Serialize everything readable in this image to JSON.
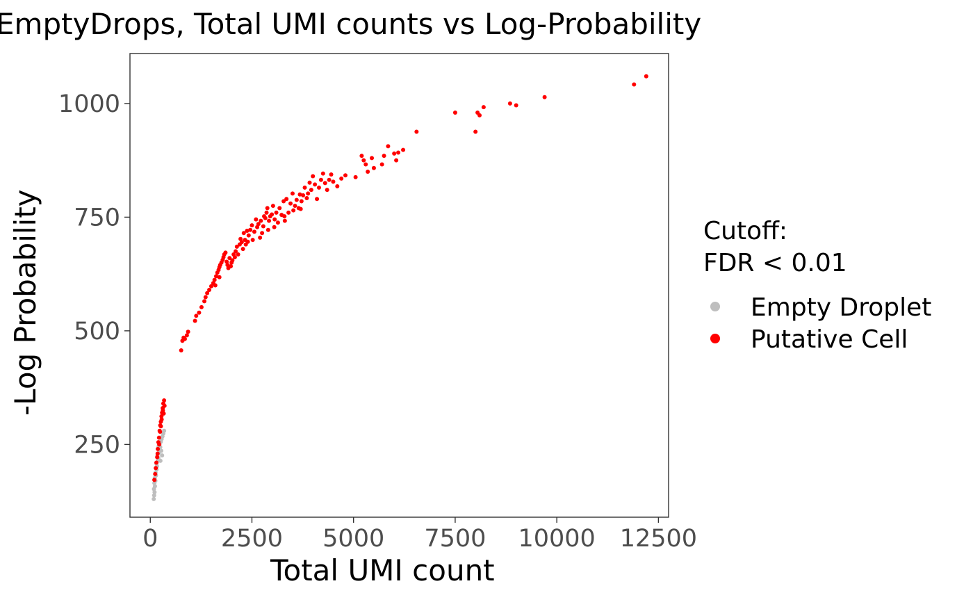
{
  "chart_data": {
    "type": "scatter",
    "title": "EmptyDrops, Total UMI counts vs Log-Probability",
    "xlabel": "Total UMI count",
    "ylabel": "-Log Probability",
    "xlim": [
      -500,
      12750
    ],
    "ylim": [
      90,
      1110
    ],
    "x_ticks": [
      0,
      2500,
      5000,
      7500,
      10000,
      12500
    ],
    "x_tick_labels": [
      "0",
      "2500",
      "5000",
      "7500",
      "10000",
      "12500"
    ],
    "y_ticks": [
      250,
      500,
      750,
      1000
    ],
    "y_tick_labels": [
      "250",
      "500",
      "750",
      "1000"
    ],
    "grid": false,
    "legend": {
      "title": "Cutoff:\nFDR < 0.01",
      "position": "right"
    },
    "series": [
      {
        "name": "Empty Droplet",
        "color": "#bebebe",
        "points": [
          [
            85,
            130
          ],
          [
            95,
            138
          ],
          [
            105,
            145
          ],
          [
            90,
            152
          ],
          [
            115,
            158
          ],
          [
            100,
            165
          ],
          [
            125,
            170
          ],
          [
            110,
            176
          ],
          [
            140,
            182
          ],
          [
            130,
            188
          ],
          [
            155,
            195
          ],
          [
            165,
            202
          ],
          [
            150,
            208
          ],
          [
            185,
            214
          ],
          [
            200,
            220
          ],
          [
            175,
            226
          ],
          [
            215,
            232
          ],
          [
            230,
            238
          ],
          [
            245,
            244
          ],
          [
            225,
            250
          ],
          [
            260,
            256
          ],
          [
            280,
            262
          ],
          [
            300,
            268
          ],
          [
            320,
            274
          ],
          [
            340,
            280
          ],
          [
            270,
            236
          ],
          [
            250,
            214
          ],
          [
            205,
            246
          ],
          [
            290,
            226
          ]
        ]
      },
      {
        "name": "Putative Cell",
        "color": "#ff0000",
        "points": [
          [
            100,
            172
          ],
          [
            120,
            185
          ],
          [
            135,
            198
          ],
          [
            150,
            210
          ],
          [
            170,
            222
          ],
          [
            185,
            240
          ],
          [
            200,
            255
          ],
          [
            215,
            265
          ],
          [
            230,
            280
          ],
          [
            245,
            292
          ],
          [
            260,
            300
          ],
          [
            275,
            312
          ],
          [
            290,
            320
          ],
          [
            305,
            330
          ],
          [
            320,
            340
          ],
          [
            340,
            347
          ],
          [
            350,
            335
          ],
          [
            310,
            325
          ],
          [
            280,
            305
          ],
          [
            260,
            290
          ],
          [
            180,
            230
          ],
          [
            240,
            278
          ],
          [
            220,
            250
          ],
          [
            330,
            318
          ],
          [
            760,
            457
          ],
          [
            790,
            478
          ],
          [
            820,
            485
          ],
          [
            850,
            482
          ],
          [
            900,
            490
          ],
          [
            930,
            498
          ],
          [
            1100,
            522
          ],
          [
            1130,
            533
          ],
          [
            1200,
            540
          ],
          [
            1260,
            552
          ],
          [
            1330,
            565
          ],
          [
            1360,
            574
          ],
          [
            1400,
            583
          ],
          [
            1450,
            590
          ],
          [
            1500,
            598
          ],
          [
            1550,
            605
          ],
          [
            1580,
            612
          ],
          [
            1620,
            620
          ],
          [
            1650,
            628
          ],
          [
            1680,
            634
          ],
          [
            1700,
            640
          ],
          [
            1720,
            645
          ],
          [
            1750,
            650
          ],
          [
            1780,
            656
          ],
          [
            1800,
            662
          ],
          [
            1820,
            668
          ],
          [
            1850,
            672
          ],
          [
            1880,
            652
          ],
          [
            1900,
            645
          ],
          [
            1920,
            638
          ],
          [
            1950,
            660
          ],
          [
            1980,
            642
          ],
          [
            2000,
            650
          ],
          [
            2020,
            655
          ],
          [
            2050,
            668
          ],
          [
            2080,
            662
          ],
          [
            2100,
            675
          ],
          [
            2130,
            685
          ],
          [
            2160,
            668
          ],
          [
            2200,
            690
          ],
          [
            2220,
            702
          ],
          [
            2250,
            695
          ],
          [
            2280,
            680
          ],
          [
            2300,
            715
          ],
          [
            2330,
            700
          ],
          [
            2350,
            690
          ],
          [
            2380,
            720
          ],
          [
            2420,
            710
          ],
          [
            2460,
            722
          ],
          [
            2500,
            732
          ],
          [
            2520,
            700
          ],
          [
            2560,
            718
          ],
          [
            2600,
            745
          ],
          [
            2630,
            728
          ],
          [
            2660,
            735
          ],
          [
            2700,
            705
          ],
          [
            2720,
            742
          ],
          [
            2750,
            715
          ],
          [
            2780,
            730
          ],
          [
            2800,
            752
          ],
          [
            2830,
            748
          ],
          [
            2860,
            760
          ],
          [
            2880,
            770
          ],
          [
            2920,
            742
          ],
          [
            2950,
            752
          ],
          [
            2990,
            756
          ],
          [
            3020,
            775
          ],
          [
            3060,
            745
          ],
          [
            3100,
            760
          ],
          [
            3140,
            738
          ],
          [
            3180,
            770
          ],
          [
            3230,
            755
          ],
          [
            3280,
            785
          ],
          [
            3310,
            742
          ],
          [
            3350,
            790
          ],
          [
            3400,
            760
          ],
          [
            3450,
            780
          ],
          [
            3500,
            802
          ],
          [
            3520,
            765
          ],
          [
            3560,
            775
          ],
          [
            3600,
            788
          ],
          [
            3650,
            770
          ],
          [
            3680,
            800
          ],
          [
            3720,
            785
          ],
          [
            3760,
            798
          ],
          [
            3800,
            815
          ],
          [
            3850,
            792
          ],
          [
            3880,
            802
          ],
          [
            3920,
            826
          ],
          [
            3960,
            810
          ],
          [
            4000,
            840
          ],
          [
            4050,
            822
          ],
          [
            4100,
            790
          ],
          [
            4150,
            815
          ],
          [
            4200,
            832
          ],
          [
            4250,
            846
          ],
          [
            4300,
            825
          ],
          [
            4350,
            810
          ],
          [
            4400,
            832
          ],
          [
            4450,
            844
          ],
          [
            4500,
            828
          ],
          [
            4600,
            818
          ],
          [
            4800,
            842
          ],
          [
            5050,
            838
          ],
          [
            5200,
            885
          ],
          [
            5250,
            875
          ],
          [
            5300,
            866
          ],
          [
            5350,
            850
          ],
          [
            5450,
            880
          ],
          [
            5500,
            858
          ],
          [
            5700,
            866
          ],
          [
            5750,
            885
          ],
          [
            5850,
            906
          ],
          [
            6000,
            890
          ],
          [
            6050,
            875
          ],
          [
            6100,
            892
          ],
          [
            6220,
            898
          ],
          [
            6550,
            938
          ],
          [
            7500,
            980
          ],
          [
            8000,
            938
          ],
          [
            8050,
            980
          ],
          [
            8100,
            974
          ],
          [
            8200,
            992
          ],
          [
            8850,
            1000
          ],
          [
            9000,
            996
          ],
          [
            9700,
            1014
          ],
          [
            11900,
            1042
          ],
          [
            12200,
            1060
          ],
          [
            3050,
            728
          ],
          [
            2900,
            722
          ],
          [
            1700,
            618
          ],
          [
            1600,
            600
          ],
          [
            2400,
            696
          ],
          [
            3300,
            752
          ],
          [
            3700,
            768
          ],
          [
            4700,
            835
          ]
        ]
      }
    ]
  }
}
